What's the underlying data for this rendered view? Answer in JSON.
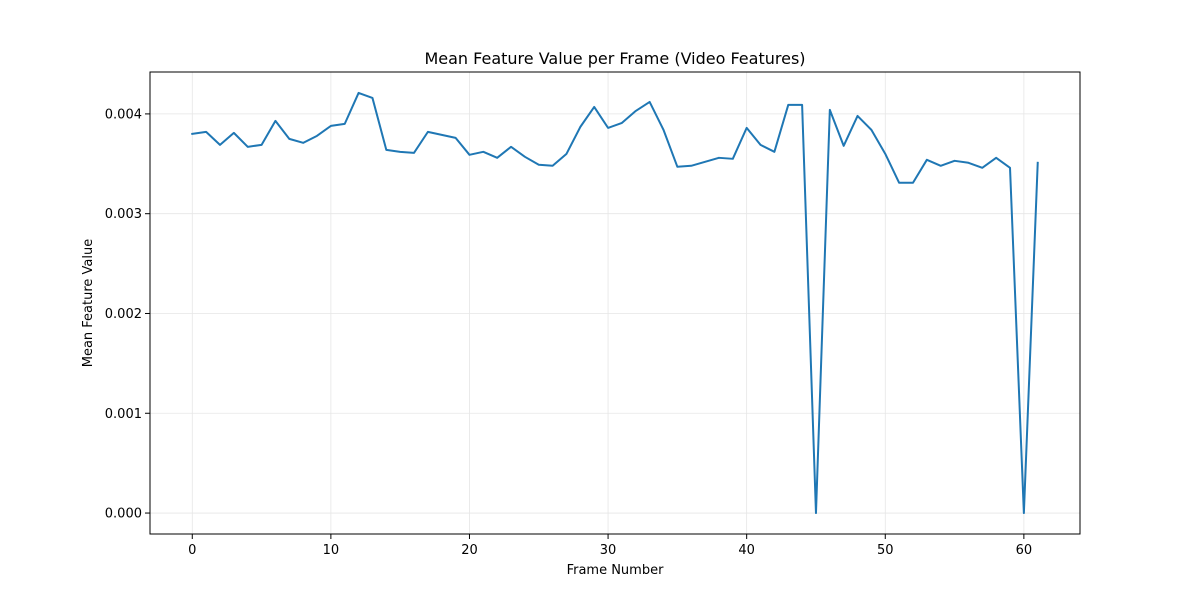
{
  "chart_data": {
    "type": "line",
    "title": "Mean Feature Value per Frame (Video Features)",
    "xlabel": "Frame Number",
    "ylabel": "Mean Feature Value",
    "xlim": [
      -3.05,
      64.05
    ],
    "ylim": [
      -0.00021,
      0.00442
    ],
    "xticks": [
      0,
      10,
      20,
      30,
      40,
      50,
      60
    ],
    "xtick_labels": [
      "0",
      "10",
      "20",
      "30",
      "40",
      "50",
      "60"
    ],
    "yticks": [
      0.0,
      0.001,
      0.002,
      0.003,
      0.004
    ],
    "ytick_labels": [
      "0.000",
      "0.001",
      "0.002",
      "0.003",
      "0.004"
    ],
    "grid": true,
    "series": [
      {
        "color": "#1f77b4",
        "x": [
          0,
          1,
          2,
          3,
          4,
          5,
          6,
          7,
          8,
          9,
          10,
          11,
          12,
          13,
          14,
          15,
          16,
          17,
          18,
          19,
          20,
          21,
          22,
          23,
          24,
          25,
          26,
          27,
          28,
          29,
          30,
          31,
          32,
          33,
          34,
          35,
          36,
          37,
          38,
          39,
          40,
          41,
          42,
          43,
          44,
          45,
          46,
          47,
          48,
          49,
          50,
          51,
          52,
          53,
          54,
          55,
          56,
          57,
          58,
          59,
          60,
          61
        ],
        "values": [
          0.0038,
          0.00382,
          0.00369,
          0.00381,
          0.00367,
          0.00369,
          0.00393,
          0.00375,
          0.00371,
          0.00378,
          0.00388,
          0.0039,
          0.00421,
          0.00416,
          0.00364,
          0.00362,
          0.00361,
          0.00382,
          0.00379,
          0.00376,
          0.00359,
          0.00362,
          0.00356,
          0.00367,
          0.00357,
          0.00349,
          0.00348,
          0.0036,
          0.00387,
          0.00407,
          0.00386,
          0.00391,
          0.00403,
          0.00412,
          0.00384,
          0.00347,
          0.00348,
          0.00352,
          0.00356,
          0.00355,
          0.00386,
          0.00369,
          0.00362,
          0.00409,
          0.00409,
          0.0,
          0.00404,
          0.00368,
          0.00398,
          0.00384,
          0.0036,
          0.00331,
          0.00331,
          0.00354,
          0.00348,
          0.00353,
          0.00351,
          0.00346,
          0.00356,
          0.00346,
          0.0,
          0.00351
        ]
      }
    ]
  }
}
